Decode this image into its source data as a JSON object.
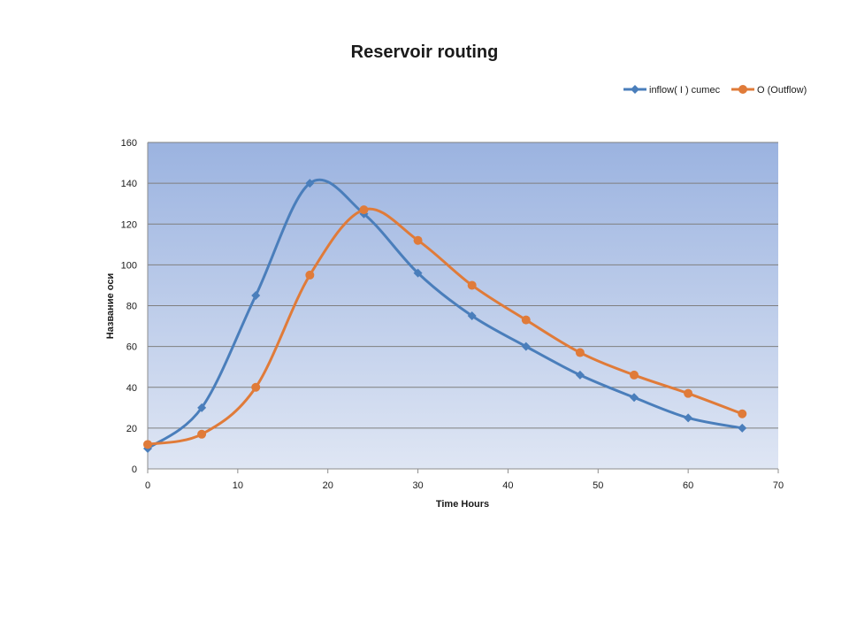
{
  "chart_data": {
    "type": "line",
    "title": "Reservoir routing",
    "xlabel": "Time Hours",
    "ylabel": "Название оси",
    "xlim": [
      0,
      70
    ],
    "ylim": [
      0,
      160
    ],
    "x_ticks": [
      0,
      10,
      20,
      30,
      40,
      50,
      60,
      70
    ],
    "y_ticks": [
      0,
      20,
      40,
      60,
      80,
      100,
      120,
      140,
      160
    ],
    "grid": "horizontal",
    "legend_position": "top-right",
    "smoothed": true,
    "series": [
      {
        "name": "inflow( I ) cumec",
        "color": "#4a7ebb",
        "marker": "diamond",
        "x": [
          0,
          6,
          12,
          18,
          24,
          30,
          36,
          42,
          48,
          54,
          60,
          66
        ],
        "y": [
          10,
          30,
          85,
          140,
          125,
          96,
          75,
          60,
          46,
          35,
          25,
          20
        ]
      },
      {
        "name": "O (Outflow)",
        "color": "#e07b39",
        "marker": "circle",
        "x": [
          0,
          6,
          12,
          18,
          24,
          30,
          36,
          42,
          48,
          54,
          60,
          66
        ],
        "y": [
          12,
          17,
          40,
          95,
          127,
          112,
          90,
          73,
          57,
          46,
          37,
          27
        ]
      }
    ],
    "colors": {
      "plot_bg_top": "#9bb3e0",
      "plot_bg_bottom": "#dfe6f4",
      "gridline": "#7f7f7f"
    }
  }
}
